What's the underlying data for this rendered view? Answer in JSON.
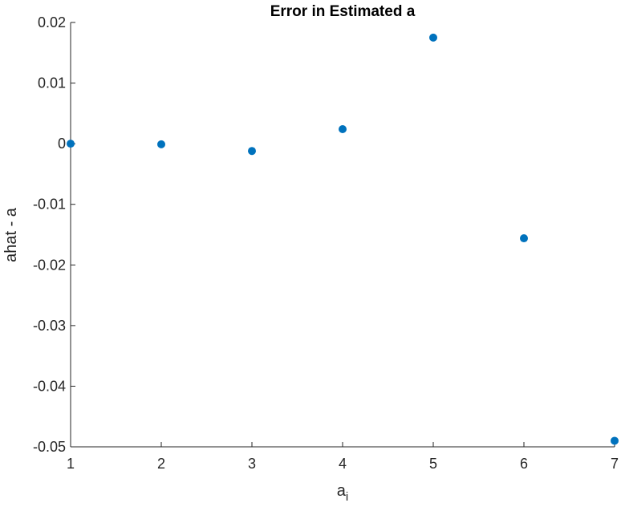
{
  "chart_data": {
    "type": "scatter",
    "title": "Error in Estimated a",
    "xlabel_main": "a",
    "xlabel_sub": "i",
    "ylabel": "ahat - a",
    "xlim": [
      1,
      7
    ],
    "ylim": [
      -0.05,
      0.02
    ],
    "xticks": [
      1,
      2,
      3,
      4,
      5,
      6,
      7
    ],
    "xtick_labels": [
      "1",
      "2",
      "3",
      "4",
      "5",
      "6",
      "7"
    ],
    "yticks": [
      0.02,
      0.01,
      0,
      -0.01,
      -0.02,
      -0.03,
      -0.04,
      -0.05
    ],
    "ytick_labels": [
      "0.02",
      "0.01",
      "0",
      "-0.01",
      "-0.02",
      "-0.03",
      "-0.04",
      "-0.05"
    ],
    "grid": false,
    "marker_color": "#0072BD",
    "x": [
      1,
      2,
      3,
      4,
      5,
      6,
      7
    ],
    "y": [
      0.0,
      -0.0001,
      -0.0012,
      0.0024,
      0.0175,
      -0.0156,
      -0.049
    ]
  }
}
